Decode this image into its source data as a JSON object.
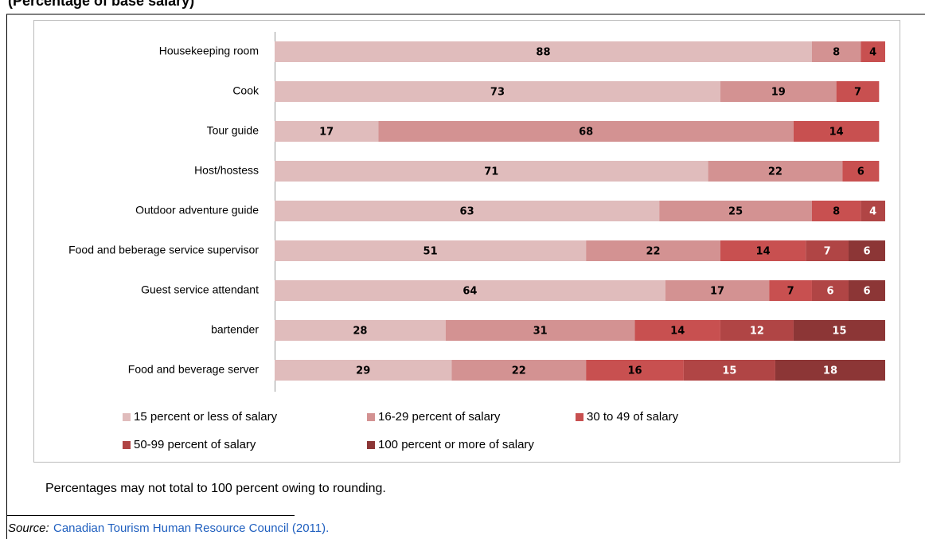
{
  "chart_data": {
    "type": "stacked_barh",
    "title": "(Percentage of base salary)",
    "categories": [
      "Housekeeping room",
      "Cook",
      "Tour guide",
      "Host/hostess",
      "Outdoor adventure guide",
      "Food and beberage service supervisor",
      "Guest service attendant",
      "bartender",
      "Food and beverage server"
    ],
    "series": [
      {
        "name": "15 percent or less of salary",
        "color": "#e0bcbc",
        "values": [
          88,
          73,
          17,
          71,
          63,
          51,
          64,
          28,
          29
        ]
      },
      {
        "name": "16-29 percent of salary",
        "color": "#d39292",
        "values": [
          8,
          19,
          68,
          22,
          25,
          22,
          17,
          31,
          22
        ]
      },
      {
        "name": "30 to 49 of salary",
        "color": "#c85050",
        "values": [
          4,
          7,
          14,
          6,
          8,
          14,
          7,
          14,
          16
        ]
      },
      {
        "name": "50-99 percent of salary",
        "color": "#b04545",
        "values": [
          null,
          null,
          null,
          null,
          4,
          7,
          6,
          12,
          15
        ]
      },
      {
        "name": "100 percent or more of salary",
        "color": "#8c3636",
        "values": [
          null,
          null,
          null,
          null,
          null,
          6,
          6,
          15,
          18
        ]
      }
    ],
    "xlim": [
      0,
      100
    ],
    "note": "Percentages may not total to 100 percent owing to rounding.",
    "source_label": "Source:",
    "source_text": "Canadian Tourism Human Resource Council (2011)."
  }
}
